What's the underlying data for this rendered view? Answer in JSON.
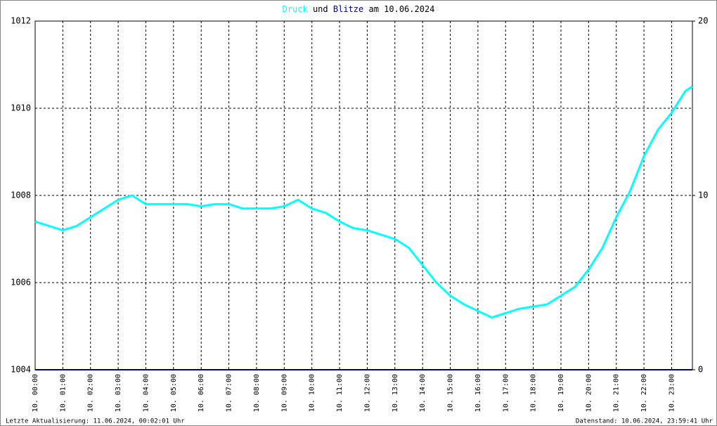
{
  "chart_data": {
    "type": "line",
    "title_words": [
      "und",
      "am 10.06.2024"
    ],
    "x": [
      0,
      0.5,
      1,
      1.5,
      2,
      2.5,
      3,
      3.5,
      4,
      4.5,
      5,
      5.5,
      6,
      6.5,
      7,
      7.5,
      8,
      8.5,
      9,
      9.5,
      10,
      10.5,
      11,
      11.5,
      12,
      12.5,
      13,
      13.5,
      14,
      14.5,
      15,
      15.5,
      16,
      16.5,
      17,
      17.5,
      18,
      18.5,
      19,
      19.5,
      20,
      20.5,
      21,
      21.5,
      22,
      22.5,
      23,
      23.5,
      23.75
    ],
    "series": [
      {
        "name": "Druck",
        "color": "#00ffff",
        "values": [
          1007.4,
          1007.3,
          1007.2,
          1007.3,
          1007.5,
          1007.7,
          1007.9,
          1008.0,
          1007.8,
          1007.8,
          1007.8,
          1007.8,
          1007.75,
          1007.8,
          1007.8,
          1007.7,
          1007.7,
          1007.7,
          1007.75,
          1007.9,
          1007.7,
          1007.6,
          1007.4,
          1007.25,
          1007.2,
          1007.1,
          1007.0,
          1006.8,
          1006.4,
          1006.0,
          1005.7,
          1005.5,
          1005.35,
          1005.2,
          1005.3,
          1005.4,
          1005.45,
          1005.5,
          1005.7,
          1005.9,
          1006.3,
          1006.8,
          1007.5,
          1008.1,
          1008.9,
          1009.5,
          1009.9,
          1010.4,
          1010.5
        ]
      },
      {
        "name": "Blitze",
        "color": "#000080",
        "axis": "y2",
        "values": [
          0,
          0,
          0,
          0,
          0,
          0,
          0,
          0,
          0,
          0,
          0,
          0,
          0,
          0,
          0,
          0,
          0,
          0,
          0,
          0,
          0,
          0,
          0,
          0,
          0,
          0,
          0,
          0,
          0,
          0,
          0,
          0,
          0,
          0,
          0,
          0,
          0,
          0,
          0,
          0,
          0,
          0,
          0,
          0,
          0,
          0,
          0,
          0,
          0
        ]
      }
    ],
    "xlim": [
      0,
      23.75
    ],
    "xticks": [
      {
        "value": 0,
        "label": "10. 00:00"
      },
      {
        "value": 1,
        "label": "10. 01:00"
      },
      {
        "value": 2,
        "label": "10. 02:00"
      },
      {
        "value": 3,
        "label": "10. 03:00"
      },
      {
        "value": 4,
        "label": "10. 04:00"
      },
      {
        "value": 5,
        "label": "10. 05:00"
      },
      {
        "value": 6,
        "label": "10. 06:00"
      },
      {
        "value": 7,
        "label": "10. 07:00"
      },
      {
        "value": 8,
        "label": "10. 08:00"
      },
      {
        "value": 9,
        "label": "10. 09:00"
      },
      {
        "value": 10,
        "label": "10. 10:00"
      },
      {
        "value": 11,
        "label": "10. 11:00"
      },
      {
        "value": 12,
        "label": "10. 12:00"
      },
      {
        "value": 13,
        "label": "10. 13:00"
      },
      {
        "value": 14,
        "label": "10. 14:00"
      },
      {
        "value": 15,
        "label": "10. 15:00"
      },
      {
        "value": 16,
        "label": "10. 16:00"
      },
      {
        "value": 17,
        "label": "10. 17:00"
      },
      {
        "value": 18,
        "label": "10. 18:00"
      },
      {
        "value": 19,
        "label": "10. 19:00"
      },
      {
        "value": 20,
        "label": "10. 20:00"
      },
      {
        "value": 21,
        "label": "10. 21:00"
      },
      {
        "value": 22,
        "label": "10. 22:00"
      },
      {
        "value": 23,
        "label": "10. 23:00"
      }
    ],
    "ylim": [
      1004,
      1012
    ],
    "yticks": [
      1004,
      1006,
      1008,
      1010,
      1012
    ],
    "y2lim": [
      0,
      20
    ],
    "y2ticks": [
      0,
      10,
      20
    ],
    "grid": true,
    "footer_left": "Letzte Aktualisierung: 11.06.2024, 00:02:01 Uhr",
    "footer_right": "Datenstand: 10.06.2024, 23:59:41 Uhr"
  }
}
